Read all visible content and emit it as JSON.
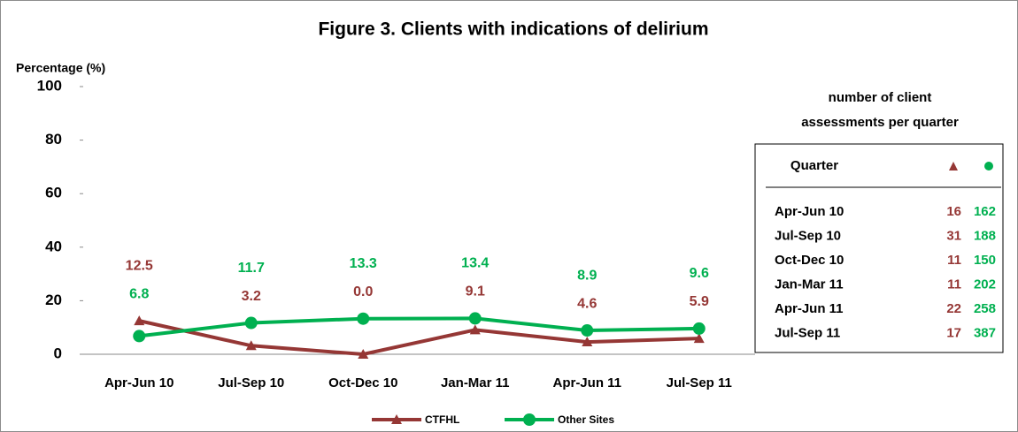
{
  "chart_data": {
    "type": "line",
    "title": "Figure 3. Clients with indications of delirium",
    "y_label": "Percentage (%)",
    "categories": [
      "Apr-Jun 10",
      "Jul-Sep 10",
      "Oct-Dec 10",
      "Jan-Mar 11",
      "Apr-Jun 11",
      "Jul-Sep 11"
    ],
    "series": [
      {
        "name": "CTFHL",
        "color": "#953735",
        "marker": "triangle",
        "values": [
          12.5,
          3.2,
          0,
          9.1,
          4.6,
          5.9
        ],
        "value_labels": [
          "12.5",
          "3.2",
          "0.0",
          "9.1",
          "4.6",
          "5.9"
        ]
      },
      {
        "name": "Other Sites",
        "color": "#00b050",
        "marker": "circle",
        "values": [
          6.8,
          11.7,
          13.3,
          13.4,
          8.9,
          9.6
        ]
      }
    ],
    "ylim": [
      0,
      100
    ],
    "yticks": [
      0,
      20,
      40,
      60,
      80,
      100
    ],
    "grid": false,
    "legend": "bottom"
  },
  "table": {
    "title_lines": [
      "number of client",
      "assessments per quarter"
    ],
    "header": [
      "Quarter"
    ],
    "rows": [
      [
        "Apr-Jun 10",
        16,
        162
      ],
      [
        "Jul-Sep 10",
        31,
        188
      ],
      [
        "Oct-Dec 10",
        11,
        150
      ],
      [
        "Jan-Mar 11",
        11,
        202
      ],
      [
        "Apr-Jun 11",
        22,
        258
      ],
      [
        "Jul-Sep 11",
        17,
        387
      ]
    ]
  }
}
